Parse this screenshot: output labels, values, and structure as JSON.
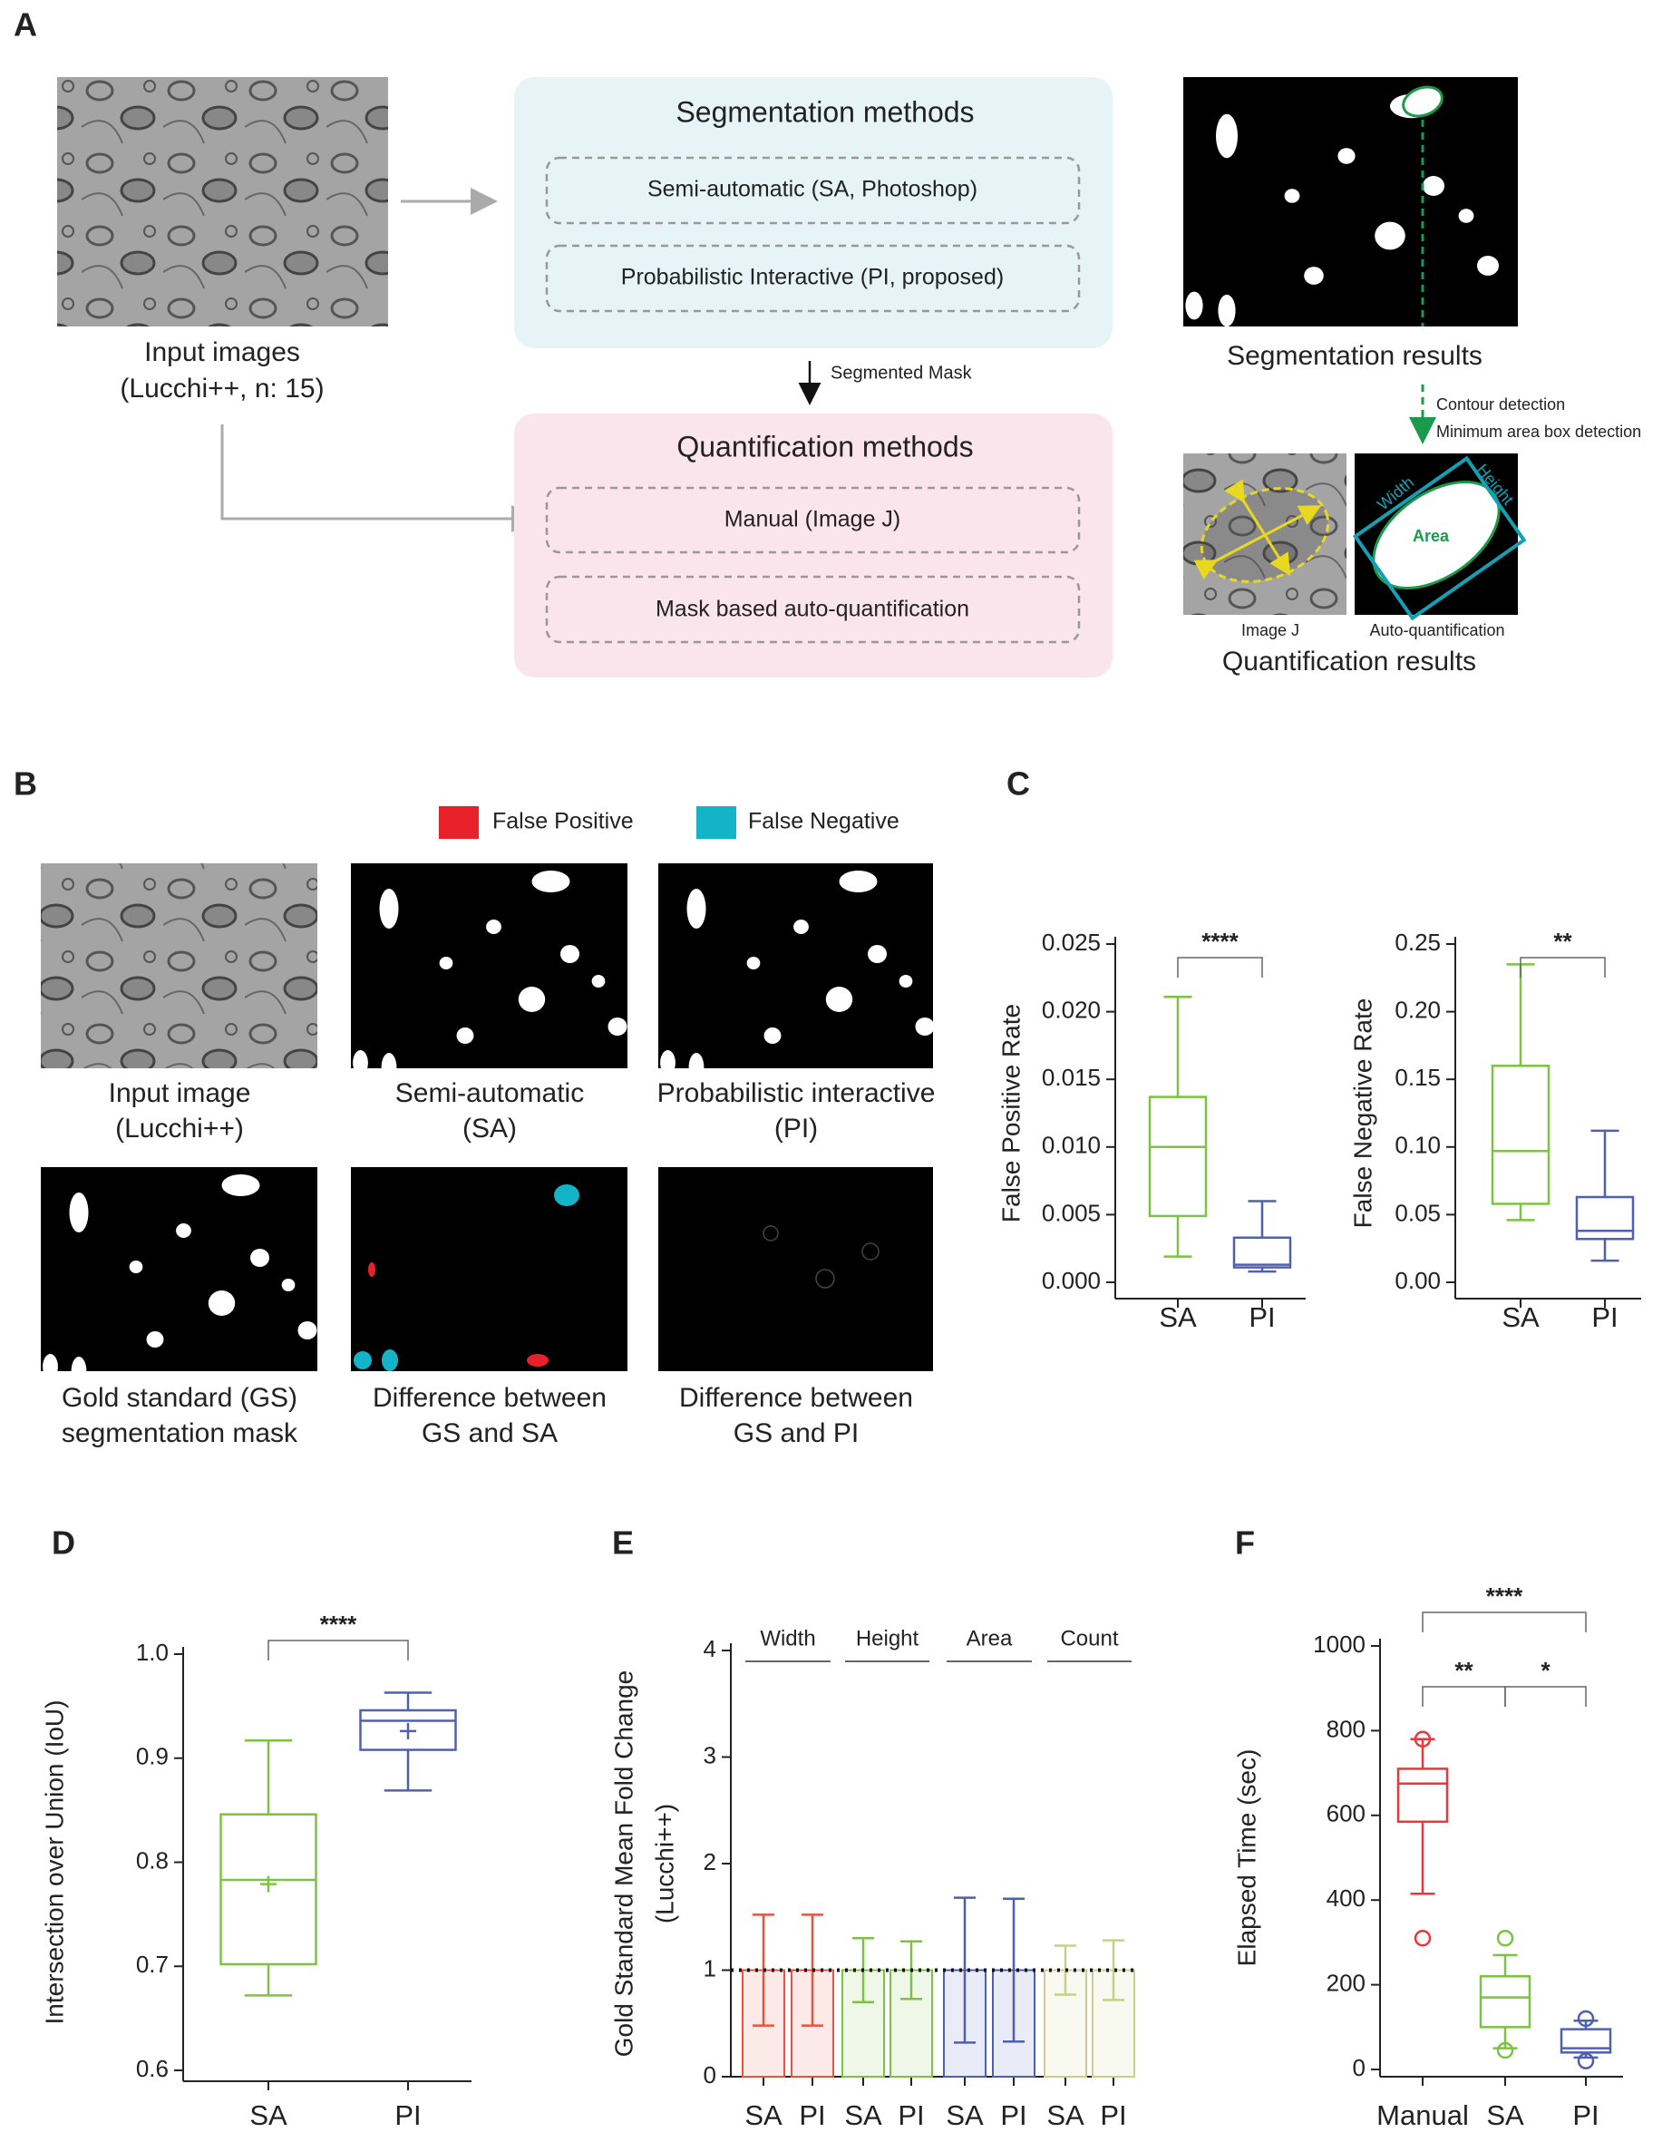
{
  "panel_a": {
    "label": "A",
    "input_caption": [
      "Input images",
      "(Lucchi++, n: 15)"
    ],
    "segmentation": {
      "title": "Segmentation methods",
      "methods": [
        "Semi-automatic (SA, Photoshop)",
        "Probabilistic Interactive (PI, proposed)"
      ]
    },
    "arrow_label": "Segmented Mask",
    "quantification": {
      "title": "Quantification methods",
      "methods": [
        "Manual (Image J)",
        "Mask based auto-quantification"
      ]
    },
    "segmentation_results": "Segmentation results",
    "steps": [
      "Contour detection",
      "Minimum area box detection"
    ],
    "quant_labels": {
      "image_j": "Image J",
      "auto": "Auto-quantification",
      "width": "Width",
      "height": "Height",
      "area": "Area"
    },
    "quantification_results": "Quantification results"
  },
  "panel_b": {
    "label": "B",
    "legend": [
      {
        "name": "False Positive",
        "color": "#e8202a"
      },
      {
        "name": "False Negative",
        "color": "#14b4c8"
      }
    ],
    "captions": [
      [
        "Input image",
        "(Lucchi++)"
      ],
      [
        "Semi-automatic",
        "(SA)"
      ],
      [
        "Probabilistic interactive",
        "(PI)"
      ],
      [
        "Gold standard (GS)",
        "segmentation mask"
      ],
      [
        "Difference between",
        "GS and SA"
      ],
      [
        "Difference between",
        "GS and PI"
      ]
    ]
  },
  "chart_data": [
    {
      "type": "box",
      "panel": "C",
      "ylabel": "False Positive Rate",
      "categories": [
        "SA",
        "PI"
      ],
      "colors": [
        "#7dc242",
        "#5060b0"
      ],
      "ylim": [
        0,
        0.025
      ],
      "yticks": [
        {
          "value": 0,
          "label": "0.000"
        },
        0.005,
        {
          "value": 0.01,
          "label": "0.010"
        },
        0.015,
        {
          "value": 0.02,
          "label": "0.020"
        },
        0.025
      ],
      "boxes": [
        {
          "min": 0.0019,
          "q1": 0.0049,
          "median": 0.01,
          "q3": 0.0137,
          "max": 0.0211
        },
        {
          "min": 0.0008,
          "q1": 0.0011,
          "median": 0.0013,
          "q3": 0.0033,
          "max": 0.006
        }
      ],
      "annotations": [
        {
          "text": "****",
          "between": [
            "SA",
            "PI"
          ]
        }
      ]
    },
    {
      "type": "box",
      "ylabel": "False Negative Rate",
      "categories": [
        "SA",
        "PI"
      ],
      "colors": [
        "#7dc242",
        "#5060b0"
      ],
      "ylim": [
        0,
        0.25
      ],
      "yticks": [
        {
          "value": 0,
          "label": "0.00"
        },
        0.05,
        {
          "value": 0.1,
          "label": "0.10"
        },
        0.15,
        {
          "value": 0.2,
          "label": "0.20"
        },
        0.25
      ],
      "boxes": [
        {
          "min": 0.046,
          "q1": 0.058,
          "median": 0.097,
          "q3": 0.16,
          "max": 0.235
        },
        {
          "min": 0.016,
          "q1": 0.032,
          "median": 0.038,
          "q3": 0.063,
          "max": 0.112
        }
      ],
      "annotations": [
        {
          "text": "**",
          "between": [
            "SA",
            "PI"
          ]
        }
      ]
    },
    {
      "type": "box",
      "panel": "D",
      "ylabel": "Intersection over Union (IoU)",
      "categories": [
        "SA",
        "PI"
      ],
      "colors": [
        "#7dc242",
        "#5060b0"
      ],
      "ylim": [
        0.6,
        1.0
      ],
      "yticks": [
        0.6,
        0.7,
        0.8,
        0.9,
        {
          "value": 1.0,
          "label": "1.0"
        }
      ],
      "boxes": [
        {
          "min": 0.672,
          "q1": 0.702,
          "median": 0.783,
          "q3": 0.846,
          "max": 0.917,
          "mean": 0.779
        },
        {
          "min": 0.869,
          "q1": 0.908,
          "median": 0.936,
          "q3": 0.946,
          "max": 0.963,
          "mean": 0.926
        }
      ],
      "annotations": [
        {
          "text": "****",
          "between": [
            "SA",
            "PI"
          ]
        }
      ]
    },
    {
      "type": "bar",
      "panel": "E",
      "ylabel": [
        "Gold Standard Mean Fold Change",
        "(Lucchi++)"
      ],
      "categories": [
        "SA",
        "PI",
        "SA",
        "PI",
        "SA",
        "PI",
        "SA",
        "PI"
      ],
      "groups": [
        {
          "name": "Width",
          "color": "#e8533f"
        },
        {
          "name": "Height",
          "color": "#7dc242"
        },
        {
          "name": "Area",
          "color": "#4c5fb5"
        },
        {
          "name": "Count",
          "color": "#c9cf8a"
        }
      ],
      "values": [
        1,
        1,
        1,
        1,
        1,
        1,
        1,
        1
      ],
      "errors": [
        0.52,
        0.52,
        0.3,
        0.27,
        0.68,
        0.67,
        0.23,
        0.28
      ],
      "reference_line": 1,
      "ylim": [
        0,
        4
      ],
      "yticks": [
        0,
        1,
        2,
        3,
        4
      ]
    },
    {
      "type": "box",
      "panel": "F",
      "ylabel": "Elapsed Time (sec)",
      "categories": [
        "Manual",
        "SA",
        "PI"
      ],
      "colors": [
        "#e8373d",
        "#7dc242",
        "#5060b0"
      ],
      "ylim": [
        0,
        1000
      ],
      "yticks": [
        0,
        200,
        400,
        600,
        800,
        1000
      ],
      "boxes": [
        {
          "min": 415,
          "q1": 585,
          "median": 675,
          "q3": 710,
          "max": 780,
          "outliers": [
            780,
            310
          ]
        },
        {
          "min": 50,
          "q1": 100,
          "median": 170,
          "q3": 220,
          "max": 270,
          "outliers": [
            310,
            45
          ]
        },
        {
          "min": 28,
          "q1": 40,
          "median": 50,
          "q3": 95,
          "max": 115,
          "outliers": [
            120,
            20
          ]
        }
      ],
      "annotations": [
        {
          "text": "****",
          "between": [
            "Manual",
            "PI"
          ]
        },
        {
          "text": "**",
          "between": [
            "Manual",
            "SA"
          ]
        },
        {
          "text": "*",
          "between": [
            "SA",
            "PI"
          ]
        }
      ]
    }
  ]
}
